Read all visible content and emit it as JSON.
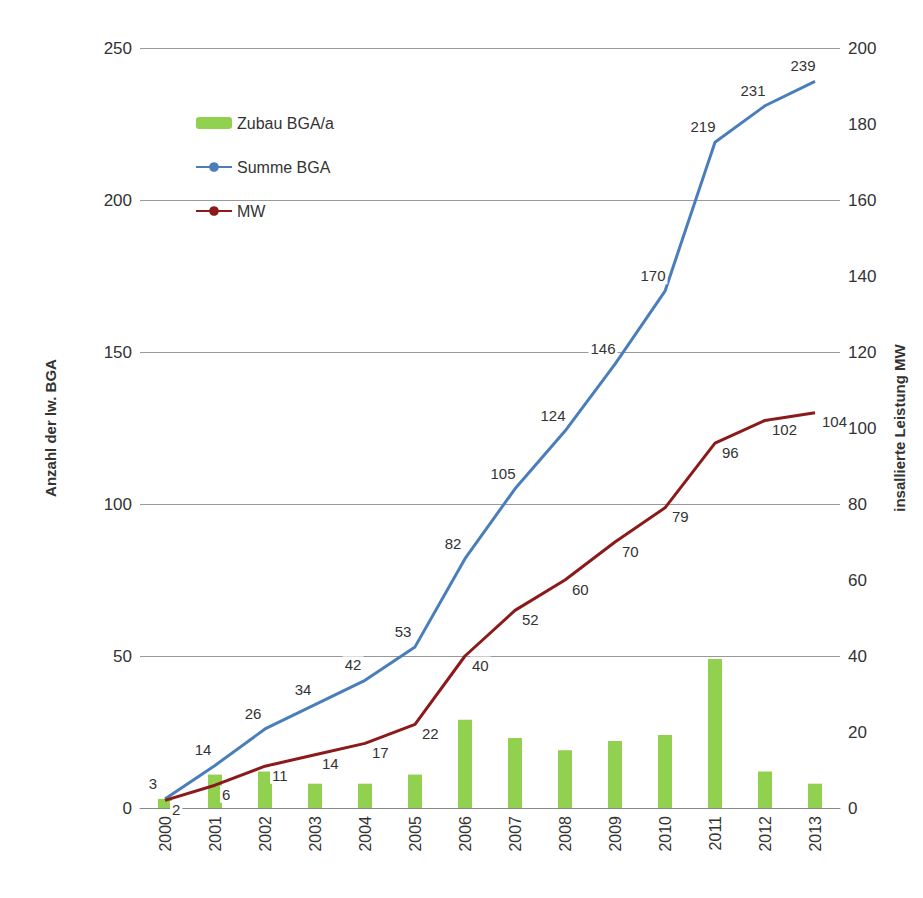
{
  "chart_data": {
    "type": "bar",
    "categories": [
      "2000",
      "2001",
      "2002",
      "2003",
      "2004",
      "2005",
      "2006",
      "2007",
      "2008",
      "2009",
      "2010",
      "2011",
      "2012",
      "2013"
    ],
    "y_label": "Anzahl der lw. BGA",
    "y2_label": "insallierte Leistung MW",
    "ylim": [
      0,
      250
    ],
    "yticks": [
      0,
      50,
      100,
      150,
      200,
      250
    ],
    "y2lim": [
      0,
      200
    ],
    "y2ticks": [
      0,
      20,
      40,
      60,
      80,
      100,
      120,
      140,
      160,
      180,
      200
    ],
    "grid": true,
    "legend": "upper left",
    "series": [
      {
        "name": "Zubau BGA/a",
        "type": "bar",
        "color": "#92d050",
        "values": [
          3,
          11,
          12,
          8,
          8,
          11,
          29,
          23,
          19,
          22,
          24,
          49,
          12,
          8
        ],
        "data_labels": false
      },
      {
        "name": "Summe BGA",
        "type": "line",
        "color": "#4a7ebb",
        "values": [
          3,
          14,
          26,
          34,
          42,
          53,
          82,
          105,
          124,
          146,
          170,
          219,
          231,
          239
        ],
        "data_labels": true
      },
      {
        "name": "MW",
        "type": "line",
        "color": "#8b1a1a",
        "axis": "y2",
        "values": [
          2,
          6,
          11,
          14,
          17,
          22,
          40,
          52,
          60,
          70,
          79,
          96,
          102,
          104
        ],
        "data_labels": true
      }
    ]
  }
}
